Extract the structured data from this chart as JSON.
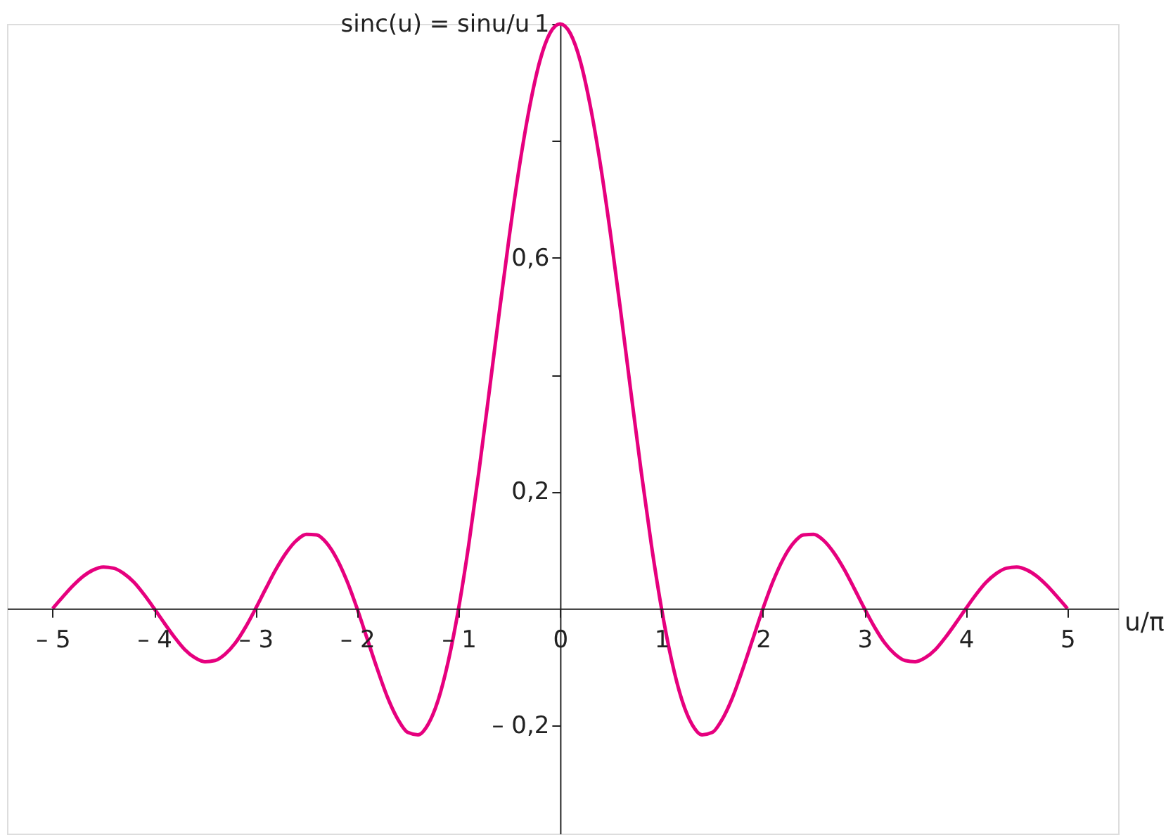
{
  "chart_data": {
    "type": "line",
    "ylabel": "sinc(u) = sinu/u",
    "xlabel": "u/π",
    "xlim": [
      -5.45,
      5.5
    ],
    "ylim": [
      -0.385,
      1.0
    ],
    "xticks": [
      {
        "value": -5,
        "label": "– 5"
      },
      {
        "value": -4,
        "label": "– 4"
      },
      {
        "value": -3,
        "label": "– 3"
      },
      {
        "value": -2,
        "label": "– 2"
      },
      {
        "value": -1,
        "label": "– 1"
      },
      0,
      1,
      2,
      3,
      4,
      5
    ],
    "yticks": [
      {
        "value": -0.2,
        "label": "– 0,2"
      },
      {
        "value": 0.2,
        "label": "0,2"
      },
      {
        "value": 0.4,
        "label": null
      },
      {
        "value": 0.6,
        "label": "0,6"
      },
      {
        "value": 0.8,
        "label": null
      },
      1
    ],
    "grid": false,
    "marker": "none",
    "line_style": "solid",
    "x": [
      -5.0,
      -4.9,
      -4.8,
      -4.7,
      -4.6,
      -4.5,
      -4.4,
      -4.3,
      -4.2,
      -4.1,
      -4.0,
      -3.9,
      -3.8,
      -3.7,
      -3.6,
      -3.5,
      -3.4,
      -3.3,
      -3.2,
      -3.1,
      -3.0,
      -2.9,
      -2.8,
      -2.7,
      -2.6,
      -2.5,
      -2.4,
      -2.3,
      -2.2,
      -2.1,
      -2.0,
      -1.9,
      -1.8,
      -1.7,
      -1.6,
      -1.5,
      -1.4,
      -1.3,
      -1.2,
      -1.1,
      -1.0,
      -0.9,
      -0.8,
      -0.7,
      -0.6,
      -0.5,
      -0.4,
      -0.3,
      -0.2,
      -0.1,
      0.0,
      0.1,
      0.2,
      0.3,
      0.4,
      0.5,
      0.6,
      0.7,
      0.8,
      0.9,
      1.0,
      1.1,
      1.2,
      1.3,
      1.4,
      1.5,
      1.6,
      1.7,
      1.8,
      1.9,
      2.0,
      2.1,
      2.2,
      2.3,
      2.4,
      2.5,
      2.6,
      2.7,
      2.8,
      2.9,
      3.0,
      3.1,
      3.2,
      3.3,
      3.4,
      3.5,
      3.6,
      3.7,
      3.8,
      3.9,
      4.0,
      4.1,
      4.2,
      4.3,
      4.4,
      4.5,
      4.6,
      4.7,
      4.8,
      4.9,
      5.0
    ],
    "series": [
      {
        "color": "#e6007e",
        "values": [
          0.0,
          0.02,
          0.039,
          0.055,
          0.066,
          0.071,
          0.069,
          0.06,
          0.045,
          0.024,
          0.0,
          -0.025,
          -0.049,
          -0.07,
          -0.084,
          -0.091,
          -0.089,
          -0.078,
          -0.059,
          -0.032,
          0.0,
          0.034,
          0.067,
          0.095,
          0.116,
          0.127,
          0.126,
          0.112,
          0.085,
          0.047,
          0.0,
          -0.052,
          -0.104,
          -0.152,
          -0.189,
          -0.212,
          -0.216,
          -0.198,
          -0.156,
          -0.089,
          0.0,
          0.109,
          0.234,
          0.368,
          0.505,
          0.637,
          0.757,
          0.858,
          0.936,
          0.984,
          1.0,
          0.984,
          0.936,
          0.858,
          0.757,
          0.637,
          0.505,
          0.368,
          0.234,
          0.109,
          0.0,
          -0.089,
          -0.156,
          -0.198,
          -0.216,
          -0.212,
          -0.189,
          -0.152,
          -0.104,
          -0.052,
          0.0,
          0.047,
          0.085,
          0.112,
          0.126,
          0.127,
          0.116,
          0.095,
          0.067,
          0.034,
          0.0,
          -0.032,
          -0.059,
          -0.078,
          -0.089,
          -0.091,
          -0.084,
          -0.07,
          -0.049,
          -0.025,
          0.0,
          0.024,
          0.045,
          0.06,
          0.069,
          0.071,
          0.066,
          0.055,
          0.039,
          0.02,
          0.0
        ]
      }
    ]
  }
}
